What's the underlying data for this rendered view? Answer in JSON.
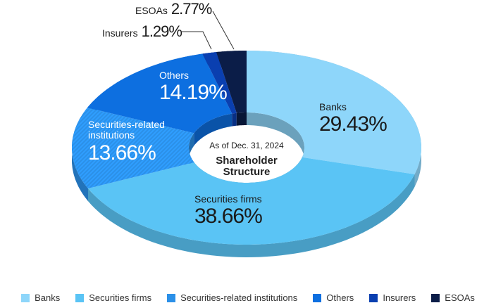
{
  "chart_data": {
    "type": "donut",
    "categories": [
      "Banks",
      "Securities firms",
      "Securities-related institutions",
      "Others",
      "Insurers",
      "ESOAs"
    ],
    "values": [
      29.43,
      38.66,
      13.66,
      14.19,
      1.29,
      2.77
    ],
    "value_labels": [
      "29.43%",
      "38.66%",
      "13.66%",
      "14.19%",
      "1.29%",
      "2.77%"
    ],
    "colors": [
      "#8ed6fa",
      "#5ac4f5",
      "#2b90e8",
      "#0d6fe0",
      "#0a3fb0",
      "#0b1d48"
    ],
    "center_note": "As of Dec. 31, 2024",
    "center_title": [
      "Shareholder",
      "Structure"
    ],
    "legend": "bottom"
  }
}
